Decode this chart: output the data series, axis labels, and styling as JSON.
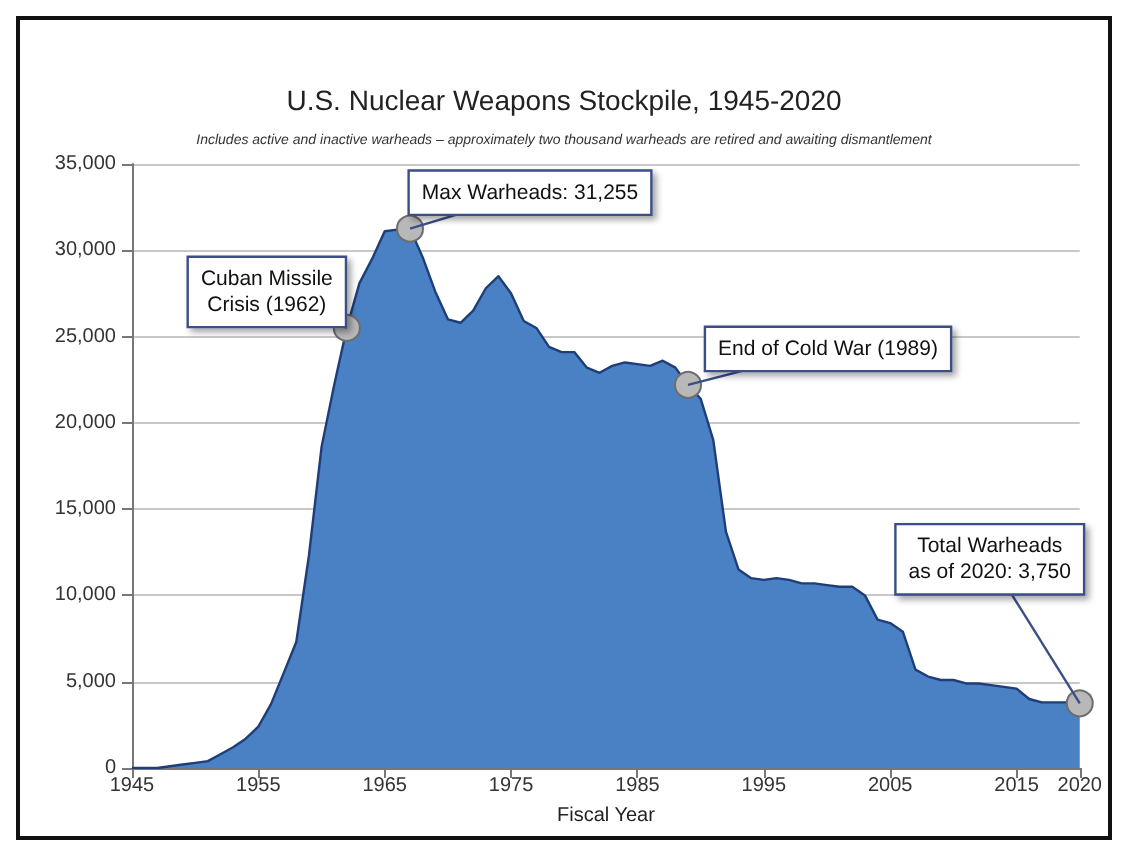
{
  "chart_data": {
    "type": "area",
    "title": "U.S. Nuclear Weapons Stockpile, 1945-2020",
    "subtitle": "Includes active and inactive warheads – approximately two thousand warheads are retired and awaiting dismantlement",
    "xlabel": "Fiscal Year",
    "x": [
      1945,
      1946,
      1947,
      1948,
      1949,
      1950,
      1951,
      1952,
      1953,
      1954,
      1955,
      1956,
      1957,
      1958,
      1959,
      1960,
      1961,
      1962,
      1963,
      1964,
      1965,
      1966,
      1967,
      1968,
      1969,
      1970,
      1971,
      1972,
      1973,
      1974,
      1975,
      1976,
      1977,
      1978,
      1979,
      1980,
      1981,
      1982,
      1983,
      1984,
      1985,
      1986,
      1987,
      1988,
      1989,
      1990,
      1991,
      1992,
      1993,
      1994,
      1995,
      1996,
      1997,
      1998,
      1999,
      2000,
      2001,
      2002,
      2003,
      2004,
      2005,
      2006,
      2007,
      2008,
      2009,
      2010,
      2011,
      2012,
      2013,
      2014,
      2015,
      2016,
      2017,
      2018,
      2019,
      2020
    ],
    "series": [
      {
        "color": "#4a80c4",
        "values": [
          0,
          0,
          0,
          100,
          200,
          300,
          400,
          800,
          1200,
          1700,
          2400,
          3700,
          5500,
          7300,
          12300,
          18600,
          22200,
          25500,
          28100,
          29500,
          31100,
          31200,
          31255,
          29600,
          27600,
          26000,
          25800,
          26500,
          27800,
          28500,
          27500,
          25900,
          25500,
          24400,
          24100,
          24100,
          23200,
          22900,
          23300,
          23500,
          23400,
          23300,
          23600,
          23200,
          22200,
          21400,
          19000,
          13700,
          11500,
          11000,
          10900,
          11000,
          10900,
          10700,
          10700,
          10600,
          10500,
          10500,
          10000,
          8600,
          8400,
          7900,
          5700,
          5300,
          5100,
          5100,
          4900,
          4900,
          4800,
          4700,
          4600,
          4000,
          3800,
          3800,
          3800,
          3750
        ]
      }
    ],
    "xlim": [
      1945,
      2020
    ],
    "xticks": [
      1945,
      1955,
      1965,
      1975,
      1985,
      1995,
      2005,
      2015,
      2020
    ],
    "ylim": [
      0,
      35000
    ],
    "yticks": [
      {
        "value": 0,
        "label": "0"
      },
      {
        "value": 5000,
        "label": "5,000"
      },
      {
        "value": 10000,
        "label": "10,000"
      },
      {
        "value": 15000,
        "label": "15,000"
      },
      {
        "value": 20000,
        "label": "20,000"
      },
      {
        "value": 25000,
        "label": "25,000"
      },
      {
        "value": 30000,
        "label": "30,000"
      },
      {
        "value": 35000,
        "label": "35,000"
      }
    ],
    "grid": "y",
    "annotations": [
      {
        "text": "Cuban Missile\nCrisis (1962)",
        "x": 1962,
        "y": 25500
      },
      {
        "text": "Max Warheads: 31,255",
        "x": 1967,
        "y": 31255
      },
      {
        "text": "End of Cold War (1989)",
        "x": 1989,
        "y": 22200
      },
      {
        "text": "Total Warheads\nas of 2020: 3,750",
        "x": 2020,
        "y": 3750
      }
    ]
  }
}
